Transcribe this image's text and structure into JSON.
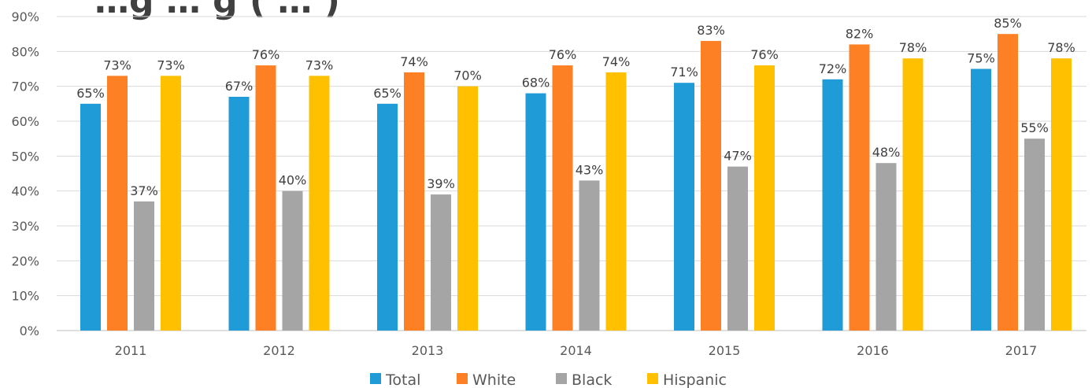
{
  "chart_data": {
    "type": "bar",
    "title": "…g … g ( … )",
    "categories": [
      "2011",
      "2012",
      "2013",
      "2014",
      "2015",
      "2016",
      "2017"
    ],
    "series": [
      {
        "name": "Total",
        "color": "#1f9bd7",
        "values": [
          65,
          67,
          65,
          68,
          71,
          72,
          75
        ]
      },
      {
        "name": "White",
        "color": "#fe8025",
        "values": [
          73,
          76,
          74,
          76,
          83,
          82,
          85
        ]
      },
      {
        "name": "Black",
        "color": "#a5a5a5",
        "values": [
          37,
          40,
          39,
          43,
          47,
          48,
          55
        ]
      },
      {
        "name": "Hispanic",
        "color": "#ffc000",
        "values": [
          73,
          73,
          70,
          74,
          76,
          78,
          78
        ]
      }
    ],
    "value_suffix": "%",
    "y_ticks": [
      "0%",
      "10%",
      "20%",
      "30%",
      "40%",
      "50%",
      "60%",
      "70%",
      "80%",
      "90%"
    ],
    "ylim": [
      0,
      90
    ],
    "grid": true,
    "legend_position": "bottom"
  }
}
